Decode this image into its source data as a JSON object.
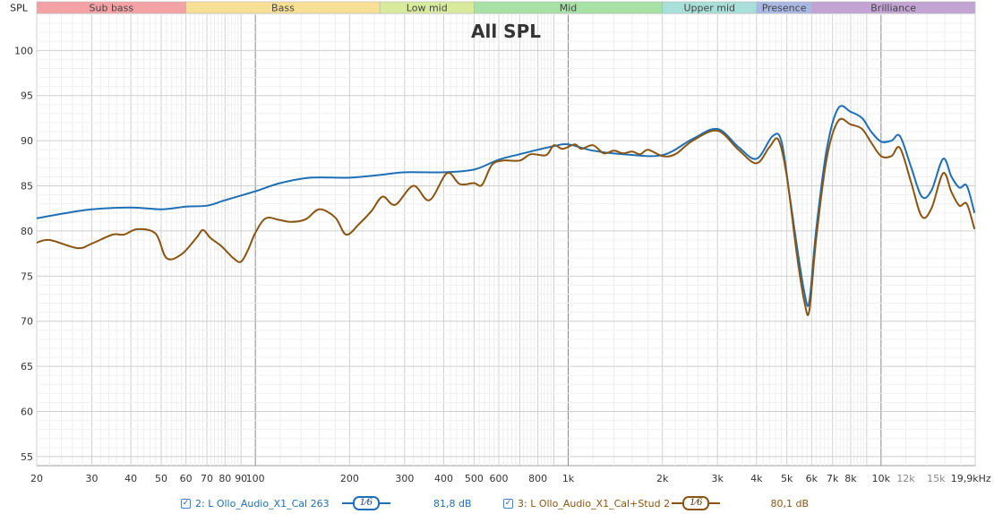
{
  "chart_data": {
    "type": "line",
    "title": "All SPL",
    "ylabel": "SPL",
    "xscale": "log",
    "xlim": [
      20,
      20000
    ],
    "ylim": [
      54,
      104
    ],
    "grid": true,
    "y_ticks": [
      55,
      60,
      65,
      70,
      75,
      80,
      85,
      90,
      95,
      100
    ],
    "x_tick_labels": [
      {
        "f": 20,
        "label": "20"
      },
      {
        "f": 30,
        "label": "30"
      },
      {
        "f": 40,
        "label": "40"
      },
      {
        "f": 50,
        "label": "50"
      },
      {
        "f": 60,
        "label": "60"
      },
      {
        "f": 70,
        "label": "70"
      },
      {
        "f": 80,
        "label": "80"
      },
      {
        "f": 90,
        "label": "90"
      },
      {
        "f": 100,
        "label": "100"
      },
      {
        "f": 200,
        "label": "200"
      },
      {
        "f": 300,
        "label": "300"
      },
      {
        "f": 400,
        "label": "400"
      },
      {
        "f": 500,
        "label": "500"
      },
      {
        "f": 600,
        "label": "600"
      },
      {
        "f": 800,
        "label": "800"
      },
      {
        "f": 1000,
        "label": "1k"
      },
      {
        "f": 2000,
        "label": "2k"
      },
      {
        "f": 3000,
        "label": "3k"
      },
      {
        "f": 4000,
        "label": "4k"
      },
      {
        "f": 5000,
        "label": "5k"
      },
      {
        "f": 6000,
        "label": "6k"
      },
      {
        "f": 7000,
        "label": "7k"
      },
      {
        "f": 8000,
        "label": "8k"
      },
      {
        "f": 10000,
        "label": "10k"
      },
      {
        "f": 12000,
        "label": "12k"
      },
      {
        "f": 15000,
        "label": "15k"
      },
      {
        "f": 19900,
        "label": "19,9kHz"
      }
    ],
    "bands": [
      {
        "name": "Sub bass",
        "from": 20,
        "to": 60,
        "color": "#f4a2a5"
      },
      {
        "name": "Bass",
        "from": 60,
        "to": 250,
        "color": "#f8df96"
      },
      {
        "name": "Low mid",
        "from": 250,
        "to": 500,
        "color": "#d8eb9c"
      },
      {
        "name": "Mid",
        "from": 500,
        "to": 2000,
        "color": "#a6e2a6"
      },
      {
        "name": "Upper mid",
        "from": 2000,
        "to": 4000,
        "color": "#a8dfd9"
      },
      {
        "name": "Presence",
        "from": 4000,
        "to": 6000,
        "color": "#a9b8e3"
      },
      {
        "name": "Brilliance",
        "from": 6000,
        "to": 20000,
        "color": "#c2a3d3"
      }
    ],
    "series": [
      {
        "name": "2: L Ollo_Audio_X1_Cal 263",
        "color": "#1f6fb5",
        "points": [
          [
            20,
            81.4
          ],
          [
            25,
            82
          ],
          [
            30,
            82.4
          ],
          [
            40,
            82.6
          ],
          [
            50,
            82.4
          ],
          [
            60,
            82.7
          ],
          [
            70,
            82.8
          ],
          [
            80,
            83.4
          ],
          [
            100,
            84.4
          ],
          [
            120,
            85.3
          ],
          [
            150,
            85.9
          ],
          [
            200,
            85.9
          ],
          [
            250,
            86.2
          ],
          [
            300,
            86.5
          ],
          [
            400,
            86.5
          ],
          [
            500,
            86.8
          ],
          [
            600,
            87.9
          ],
          [
            700,
            88.5
          ],
          [
            800,
            89
          ],
          [
            900,
            89.4
          ],
          [
            1000,
            89.6
          ],
          [
            1200,
            88.9
          ],
          [
            1500,
            88.5
          ],
          [
            2000,
            88.4
          ],
          [
            2500,
            90.2
          ],
          [
            3000,
            91.3
          ],
          [
            3500,
            89.3
          ],
          [
            4000,
            88
          ],
          [
            4500,
            90.5
          ],
          [
            4800,
            90
          ],
          [
            5100,
            84
          ],
          [
            5400,
            78
          ],
          [
            5700,
            73
          ],
          [
            5900,
            72.2
          ],
          [
            6200,
            80
          ],
          [
            6700,
            89
          ],
          [
            7300,
            93.6
          ],
          [
            8000,
            93.2
          ],
          [
            8700,
            92.5
          ],
          [
            9300,
            91
          ],
          [
            10000,
            89.9
          ],
          [
            10800,
            90
          ],
          [
            11500,
            90.5
          ],
          [
            12500,
            87
          ],
          [
            13500,
            83.8
          ],
          [
            14500,
            84.5
          ],
          [
            15800,
            88
          ],
          [
            16800,
            86
          ],
          [
            17800,
            84.8
          ],
          [
            18800,
            85
          ],
          [
            19900,
            82
          ]
        ]
      },
      {
        "name": "3: L Ollo_Audio_X1_Cal+Stud 2",
        "color": "#8a5512",
        "points": [
          [
            20,
            78.7
          ],
          [
            22,
            79
          ],
          [
            27,
            78.1
          ],
          [
            30,
            78.6
          ],
          [
            35,
            79.6
          ],
          [
            38,
            79.6
          ],
          [
            42,
            80.2
          ],
          [
            48,
            79.7
          ],
          [
            52,
            77
          ],
          [
            58,
            77.4
          ],
          [
            65,
            79.3
          ],
          [
            68,
            80.1
          ],
          [
            72,
            79.2
          ],
          [
            78,
            78.3
          ],
          [
            85,
            77
          ],
          [
            90,
            76.6
          ],
          [
            95,
            78
          ],
          [
            100,
            79.8
          ],
          [
            108,
            81.4
          ],
          [
            120,
            81.2
          ],
          [
            130,
            81
          ],
          [
            145,
            81.3
          ],
          [
            160,
            82.4
          ],
          [
            180,
            81.5
          ],
          [
            195,
            79.6
          ],
          [
            215,
            80.8
          ],
          [
            235,
            82.2
          ],
          [
            255,
            83.8
          ],
          [
            280,
            82.9
          ],
          [
            320,
            85
          ],
          [
            360,
            83.4
          ],
          [
            410,
            86.4
          ],
          [
            450,
            85.2
          ],
          [
            500,
            85.3
          ],
          [
            530,
            85.1
          ],
          [
            570,
            87.3
          ],
          [
            620,
            87.8
          ],
          [
            700,
            87.8
          ],
          [
            760,
            88.5
          ],
          [
            850,
            88.4
          ],
          [
            900,
            89.5
          ],
          [
            960,
            89.1
          ],
          [
            1050,
            89.6
          ],
          [
            1100,
            89.1
          ],
          [
            1200,
            89.5
          ],
          [
            1300,
            88.6
          ],
          [
            1400,
            88.9
          ],
          [
            1500,
            88.6
          ],
          [
            1600,
            88.8
          ],
          [
            1700,
            88.5
          ],
          [
            1800,
            89
          ],
          [
            2000,
            88.3
          ],
          [
            2200,
            88.5
          ],
          [
            2500,
            90
          ],
          [
            3000,
            91.1
          ],
          [
            3500,
            89
          ],
          [
            4000,
            87.5
          ],
          [
            4400,
            89.3
          ],
          [
            4700,
            90.1
          ],
          [
            5000,
            86
          ],
          [
            5400,
            77
          ],
          [
            5700,
            72
          ],
          [
            5900,
            71.2
          ],
          [
            6200,
            79
          ],
          [
            6700,
            88
          ],
          [
            7300,
            92.2
          ],
          [
            8000,
            91.8
          ],
          [
            8700,
            91.3
          ],
          [
            9300,
            89.8
          ],
          [
            10000,
            88.3
          ],
          [
            10800,
            88.3
          ],
          [
            11500,
            89.2
          ],
          [
            12500,
            85.3
          ],
          [
            13500,
            81.6
          ],
          [
            14500,
            82.5
          ],
          [
            15800,
            86.4
          ],
          [
            16800,
            84.3
          ],
          [
            17800,
            82.8
          ],
          [
            18800,
            83
          ],
          [
            19900,
            80.2
          ]
        ]
      }
    ]
  },
  "legend": [
    {
      "id": 2,
      "label": "2: L Ollo_Audio_X1_Cal 263",
      "smoothing": "1⁄6",
      "value": "81,8 dB",
      "checked": "✓",
      "color": "#1f6fb5"
    },
    {
      "id": 3,
      "label": "3: L Ollo_Audio_X1_Cal+Stud 2",
      "smoothing": "1⁄6",
      "value": "80,1 dB",
      "checked": "✓",
      "color": "#8a5512"
    }
  ]
}
